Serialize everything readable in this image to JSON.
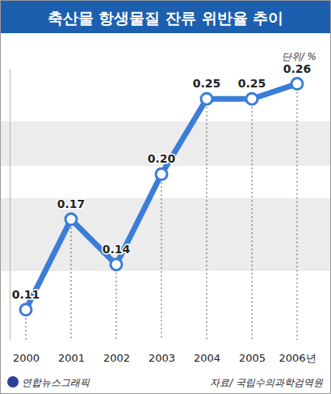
{
  "chart_data": {
    "type": "line",
    "title": "축산물 항생물질 잔류 위반율 추이",
    "y_label": "단위/ %",
    "source": "자료/ 국립수의과학검역원",
    "credit": "연합뉴스그래픽",
    "categories": [
      "2000",
      "2001",
      "2002",
      "2003",
      "2004",
      "2005",
      "2006년"
    ],
    "values": [
      0.11,
      0.17,
      0.14,
      0.2,
      0.25,
      0.25,
      0.26
    ],
    "value_labels": [
      "0.11",
      "0.17",
      "0.14",
      "0.20",
      "0.25",
      "0.25",
      "0.26"
    ],
    "color": "#3b7dd8",
    "marker": "circle",
    "ylim": [
      0.09,
      0.27
    ],
    "yticks": [],
    "data_labels": true,
    "tick_labels": "x"
  }
}
